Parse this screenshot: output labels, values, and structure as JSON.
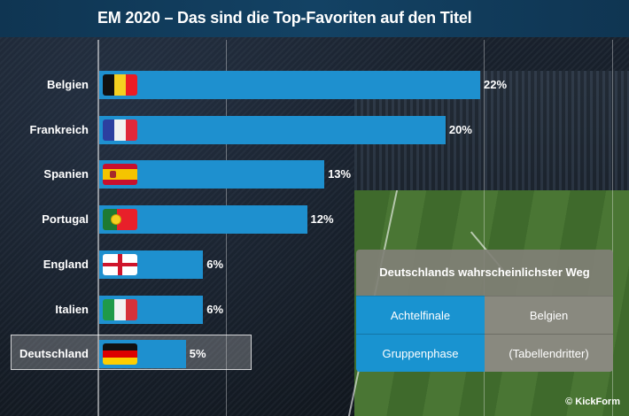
{
  "header": {
    "title": "EM 2020 – Das sind die Top-Favoriten auf den Titel"
  },
  "chart_data": {
    "type": "bar",
    "orientation": "horizontal",
    "title": "EM 2020 – Das sind die Top-Favoriten auf den Titel",
    "categories": [
      "Belgien",
      "Frankreich",
      "Spanien",
      "Portugal",
      "England",
      "Italien",
      "Deutschland"
    ],
    "values": [
      22,
      20,
      13,
      12,
      6,
      6,
      5
    ],
    "value_labels": [
      "22%",
      "20%",
      "13%",
      "12%",
      "6%",
      "6%",
      "5%"
    ],
    "unit": "%",
    "highlighted": "Deutschland",
    "xlim": [
      0,
      23
    ],
    "bar_color": "#1e90cf",
    "flags": [
      "belgium-flag",
      "france-flag",
      "spain-flag",
      "portugal-flag",
      "england-flag",
      "italy-flag",
      "germany-flag"
    ]
  },
  "panel": {
    "title": "Deutschlands wahrscheinlichster Weg",
    "rows": [
      {
        "stage": "Achtelfinale",
        "detail": "Belgien"
      },
      {
        "stage": "Gruppenphase",
        "detail": "(Tabellendritter)"
      }
    ],
    "accent": "#1993d0"
  },
  "footer": {
    "copyright": "© KickForm"
  }
}
